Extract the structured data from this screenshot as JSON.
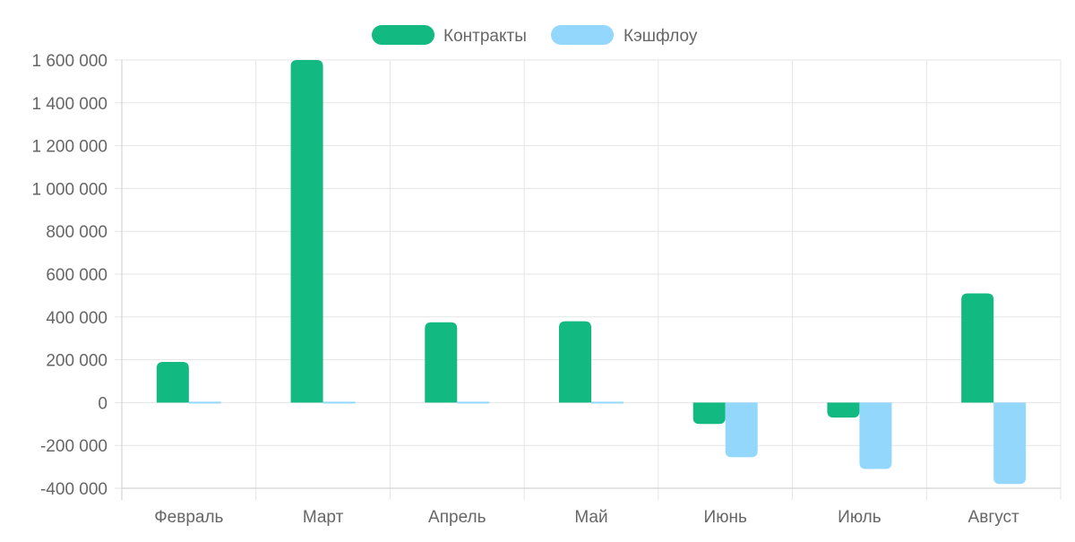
{
  "chart_data": {
    "type": "bar",
    "categories": [
      "Февраль",
      "Март",
      "Апрель",
      "Май",
      "Июнь",
      "Июль",
      "Август"
    ],
    "series": [
      {
        "name": "Контракты",
        "color": "#12b981",
        "values": [
          190000,
          1600000,
          375000,
          380000,
          -100000,
          -70000,
          510000
        ]
      },
      {
        "name": "Кэшфлоу",
        "color": "#93d8fc",
        "values": [
          0,
          0,
          0,
          0,
          -255000,
          -310000,
          -380000
        ]
      }
    ],
    "title": "",
    "xlabel": "",
    "ylabel": "",
    "ylim": [
      -400000,
      1600000
    ],
    "yticks": [
      {
        "value": 1600000,
        "label": "1 600 000"
      },
      {
        "value": 1400000,
        "label": "1 400 000"
      },
      {
        "value": 1200000,
        "label": "1 200 000"
      },
      {
        "value": 1000000,
        "label": "1 000 000"
      },
      {
        "value": 800000,
        "label": "800 000"
      },
      {
        "value": 600000,
        "label": "600 000"
      },
      {
        "value": 400000,
        "label": "400 000"
      },
      {
        "value": 200000,
        "label": "200 000"
      },
      {
        "value": 0,
        "label": "0"
      },
      {
        "value": -200000,
        "label": "-200 000"
      },
      {
        "value": -400000,
        "label": "-400 000"
      }
    ],
    "grid": true,
    "legend_position": "top"
  }
}
